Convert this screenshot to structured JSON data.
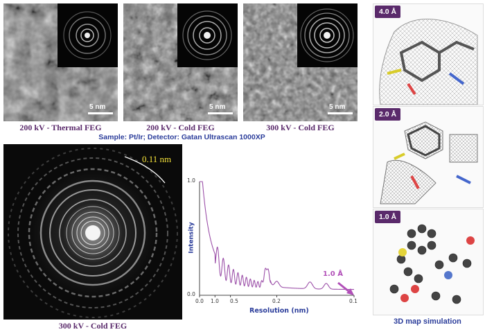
{
  "top_panels": [
    {
      "caption": "200 kV - Thermal FEG",
      "scale": "5 nm"
    },
    {
      "caption": "200 kV - Cold FEG",
      "scale": "5 nm"
    },
    {
      "caption": "300 kV - Cold FEG",
      "scale": "5 nm"
    }
  ],
  "sample_line": "Sample: Pt/Ir; Detector: Gatan Ultrascan 1000XP",
  "diffraction": {
    "ring_label": "0.11 nm",
    "caption": "300 kV - Cold FEG"
  },
  "right_panels": [
    {
      "badge": "4.0 Å"
    },
    {
      "badge": "2.0 Å"
    },
    {
      "badge": "1.0 Å"
    }
  ],
  "right_caption": "3D map simulation",
  "chart_data": {
    "type": "line",
    "xlabel": "Resolution (nm)",
    "ylabel": "Intensity",
    "x_tick_labels": [
      "0.0",
      "1.0",
      "0.5",
      "0.2",
      "0.1"
    ],
    "y_tick_labels": [
      "1.0",
      "0.0"
    ],
    "xlim_inverse_nm": [
      0,
      10
    ],
    "ylim": [
      0,
      1
    ],
    "annotation": "1.0 Å",
    "series_color": "#9b4fa8"
  }
}
